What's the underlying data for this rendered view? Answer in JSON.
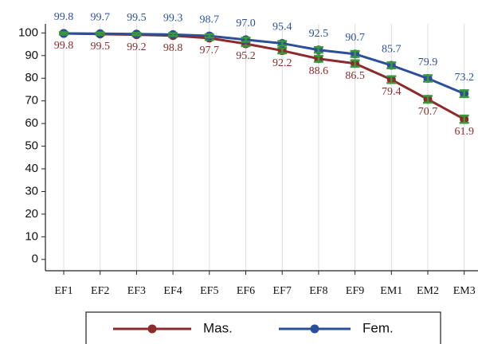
{
  "chart_data": {
    "type": "line",
    "categories": [
      "EF1",
      "EF2",
      "EF3",
      "EF4",
      "EF5",
      "EF6",
      "EF7",
      "EF8",
      "EF9",
      "EM1",
      "EM2",
      "EM3"
    ],
    "series": [
      {
        "name": "Mas.",
        "color": "#8c2b2b",
        "values": [
          99.8,
          99.5,
          99.2,
          98.8,
          97.7,
          95.2,
          92.2,
          88.6,
          86.5,
          79.4,
          70.7,
          61.9
        ],
        "value_labels": [
          "99.8",
          "99.5",
          "99.2",
          "98.8",
          "97.7",
          "95.2",
          "92.2",
          "88.6",
          "86.5",
          "79.4",
          "70.7",
          "61.9"
        ],
        "errors": [
          0.5,
          0.5,
          0.6,
          0.6,
          0.8,
          1,
          1.2,
          1.3,
          1.4,
          1.5,
          1.5,
          1.6
        ]
      },
      {
        "name": "Fem.",
        "color": "#2b4f9b",
        "values": [
          99.8,
          99.7,
          99.5,
          99.3,
          98.7,
          97.0,
          95.4,
          92.5,
          90.7,
          85.7,
          79.9,
          73.2
        ],
        "value_labels": [
          "99.8",
          "99.7",
          "99.5",
          "99.3",
          "98.7",
          "97.0",
          "95.4",
          "92.5",
          "90.7",
          "85.7",
          "79.9",
          "73.2"
        ],
        "errors": [
          0.5,
          0.5,
          0.5,
          0.6,
          0.7,
          0.9,
          1,
          1.2,
          1.3,
          1.3,
          1.4,
          1.5
        ]
      }
    ],
    "error_color": "#3a9a3a",
    "ylim": [
      -5,
      104
    ],
    "yticks": [
      0,
      10,
      20,
      30,
      40,
      50,
      60,
      70,
      80,
      90,
      100
    ],
    "grid": "x",
    "legend": "bottom"
  }
}
